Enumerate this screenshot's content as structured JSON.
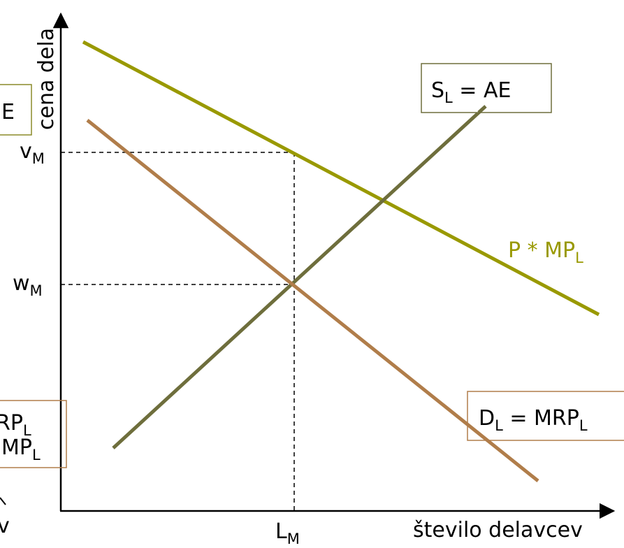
{
  "colors": {
    "axes": "#000000",
    "guides": "#000000",
    "p_mp_line": "#999900",
    "supply_line": "#6e6e3c",
    "demand_line": "#b07d4a",
    "p_mp_label": "#999900",
    "box_supply": "#6e6e3c",
    "box_demand": "#b07d4a",
    "box_left_top": "#8a8a28",
    "box_left_bottom": "#b07d4a"
  },
  "axes": {
    "y_title": "cena dela",
    "x_title": "število delavcev",
    "y_ticks": [
      {
        "base": "v",
        "sub": "M"
      },
      {
        "base": "w",
        "sub": "M"
      }
    ],
    "x_ticks": [
      {
        "base": "L",
        "sub": "M"
      }
    ]
  },
  "curves": {
    "p_mp": {
      "base": "P * MP",
      "sub": "L"
    },
    "supply": {
      "base": "S",
      "sub": "L",
      "rest": " = AE"
    },
    "demand": {
      "base": "D",
      "sub": "L",
      "rest": " = MRP",
      "sub2": "L"
    }
  },
  "cropped_left": {
    "top_box": "E",
    "bottom_box_line1": {
      "base": "RP",
      "sub": "L"
    },
    "bottom_box_line2": {
      "base": "MP",
      "sub": "L"
    },
    "x_fragment": "v"
  }
}
